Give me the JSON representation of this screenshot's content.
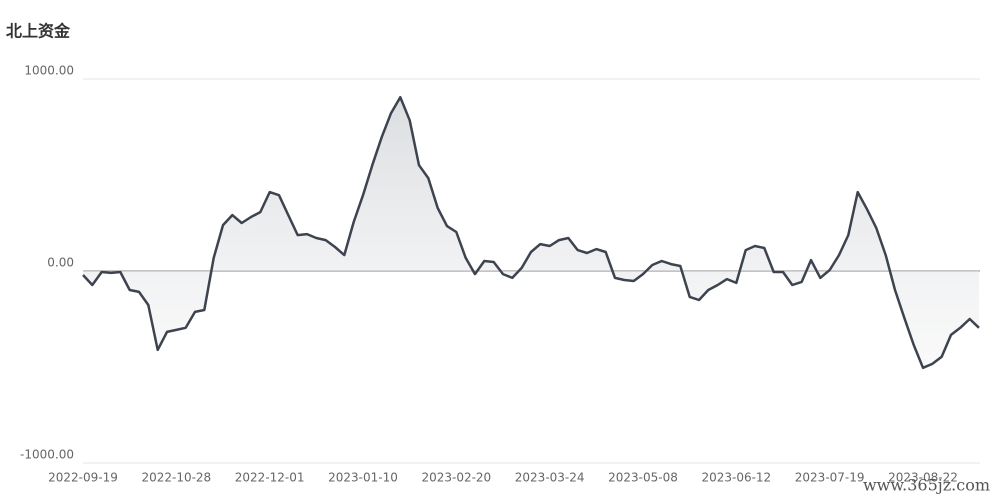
{
  "chart_data": {
    "type": "area-line",
    "title": "北上资金",
    "categories": [
      "2022-09-19",
      null,
      null,
      null,
      null,
      null,
      null,
      null,
      null,
      null,
      "2022-10-28",
      null,
      null,
      null,
      null,
      null,
      null,
      null,
      null,
      null,
      "2022-12-01",
      null,
      null,
      null,
      null,
      null,
      null,
      null,
      null,
      null,
      "2023-01-10",
      null,
      null,
      null,
      null,
      null,
      null,
      null,
      null,
      null,
      "2023-02-20",
      null,
      null,
      null,
      null,
      null,
      null,
      null,
      null,
      null,
      "2023-03-24",
      null,
      null,
      null,
      null,
      null,
      null,
      null,
      null,
      null,
      "2023-05-08",
      null,
      null,
      null,
      null,
      null,
      null,
      null,
      null,
      null,
      "2023-06-12",
      null,
      null,
      null,
      null,
      null,
      null,
      null,
      null,
      null,
      "2023-07-19",
      null,
      null,
      null,
      null,
      null,
      null,
      null,
      null,
      null,
      "2023-08-22",
      null,
      null,
      null,
      null,
      null,
      null
    ],
    "values": [
      -21,
      -73,
      -5,
      -10,
      -5,
      -99,
      -109,
      -177,
      -411,
      -317,
      -307,
      -296,
      -213,
      -203,
      68,
      239,
      291,
      250,
      281,
      307,
      411,
      395,
      291,
      187,
      192,
      172,
      161,
      125,
      83,
      255,
      395,
      551,
      697,
      822,
      905,
      785,
      551,
      484,
      328,
      234,
      203,
      68,
      -16,
      52,
      47,
      -16,
      -36,
      16,
      99,
      140,
      130,
      161,
      172,
      109,
      94,
      114,
      99,
      -36,
      -47,
      -52,
      -16,
      31,
      52,
      36,
      26,
      -135,
      -151,
      -99,
      -73,
      -42,
      -62,
      109,
      130,
      120,
      -5,
      -5,
      -73,
      -57,
      57,
      -36,
      5,
      83,
      187,
      411,
      322,
      224,
      83,
      -99,
      -244,
      -385,
      -504,
      -484,
      -447,
      -333,
      -296,
      -250,
      -296
    ],
    "color": "#3d4450",
    "ylim": [
      -1000,
      1000
    ],
    "yticks": [
      {
        "value": -1000,
        "label": "-1000.00"
      },
      {
        "value": 0,
        "label": "0.00"
      },
      {
        "value": 1000,
        "label": "1000.00"
      }
    ],
    "grid": true,
    "watermark": "www.365jz.com"
  }
}
